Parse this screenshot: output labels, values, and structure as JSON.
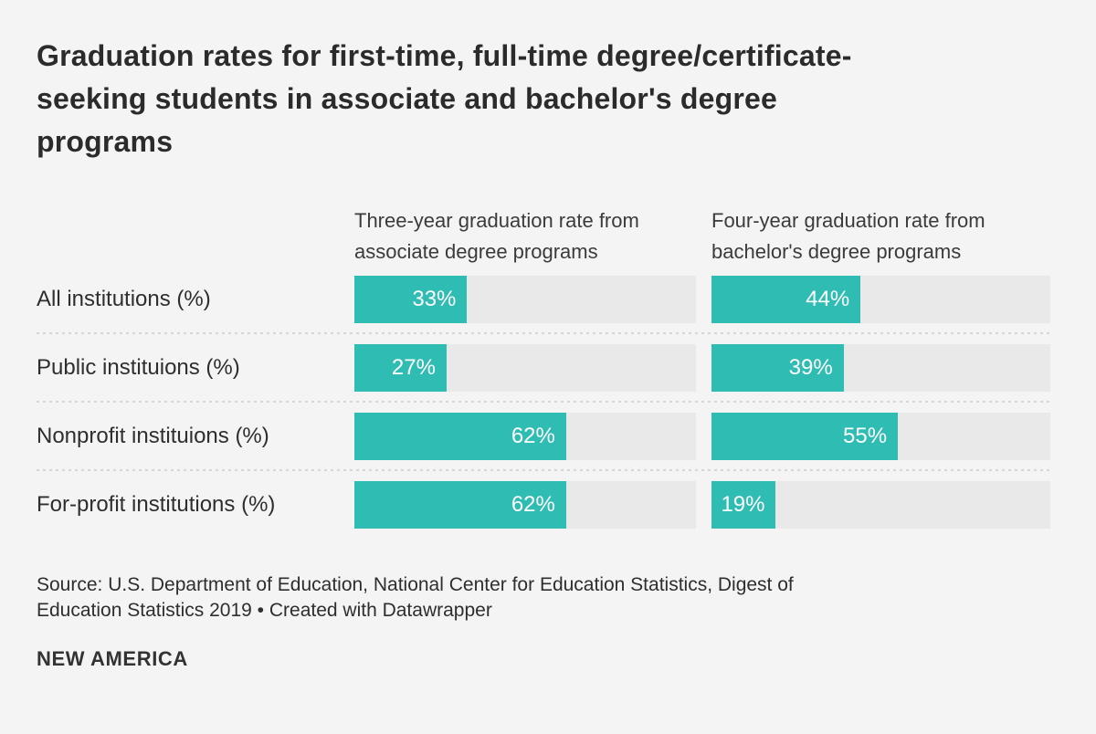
{
  "header": {
    "title_lines": [
      "Graduation rates for first-time, full-time degree/certificate-",
      "seeking students in associate and bachelor's degree",
      "programs"
    ]
  },
  "chart_data": {
    "type": "bar",
    "orientation": "horizontal",
    "title": "Graduation rates for first-time, full-time degree/certificate-seeking students in associate and bachelor's degree programs",
    "categories": [
      "All institutions (%)",
      "Public instituions (%)",
      "Nonprofit instituions (%)",
      "For-profit institutions (%)"
    ],
    "series": [
      {
        "name": "Three-year graduation rate from associate degree programs",
        "values": [
          33,
          27,
          62,
          62
        ]
      },
      {
        "name": "Four-year graduation rate from bachelor's degree programs",
        "values": [
          44,
          39,
          55,
          19
        ]
      }
    ],
    "value_suffix": "%",
    "xlim": [
      0,
      100
    ],
    "grid": false,
    "legend_position": "column-headers-above-bars",
    "bar_color": "#2fbcb2",
    "track_color": "#e9e9e9",
    "value_label_color": "#ffffff",
    "value_label_position": "inside-right"
  },
  "footer": {
    "source": "Source: U.S. Department of Education, National Center for Education Statistics, Digest of Education Statistics 2019",
    "separator": "•",
    "credit": "Created with Datawrapper",
    "logo": "NEW AMERICA"
  },
  "colors": {
    "background": "#f3f4f3",
    "title_text": "#2b2b2b",
    "body_text": "#2e2e2e",
    "separator_dots": "#d7d7d7"
  }
}
